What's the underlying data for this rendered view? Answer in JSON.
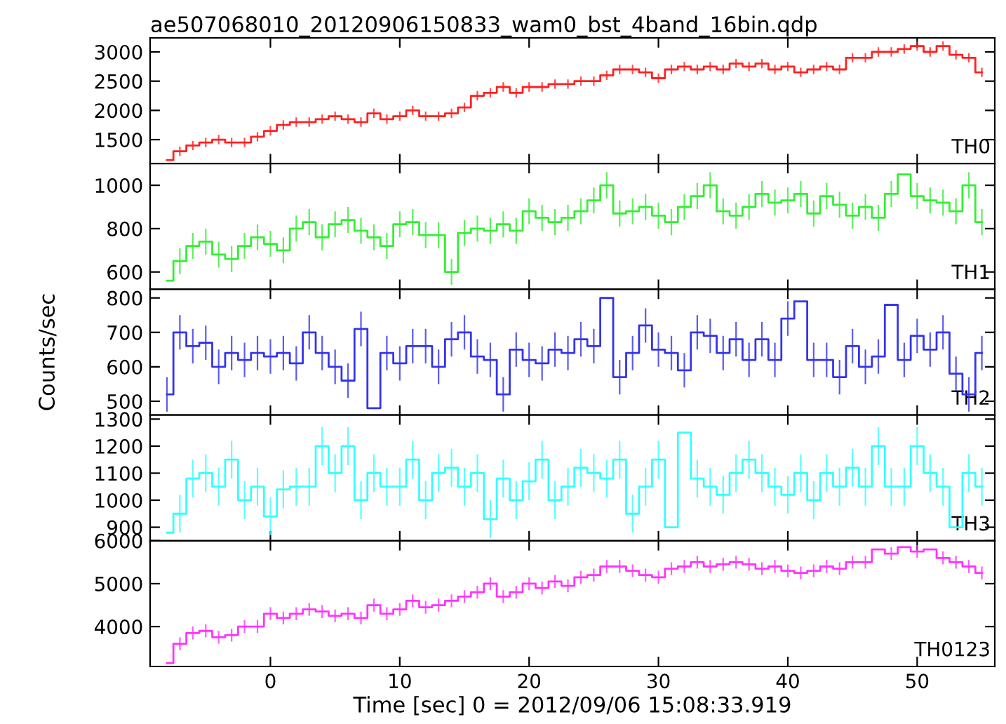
{
  "chart_data": [
    {
      "type": "step",
      "title": "ae507068010_20120906150833_wam0_bst_4band_16bin.qdp",
      "tick_labels": "y",
      "x": [
        -8,
        -7,
        -6,
        -5,
        -4,
        -3,
        -2,
        -1,
        0,
        1,
        2,
        3,
        4,
        5,
        6,
        7,
        8,
        9,
        10,
        11,
        12,
        13,
        14,
        15,
        16,
        17,
        18,
        19,
        20,
        21,
        22,
        23,
        24,
        25,
        26,
        27,
        28,
        29,
        30,
        31,
        32,
        33,
        34,
        35,
        36,
        37,
        38,
        39,
        40,
        41,
        42,
        43,
        44,
        45,
        46,
        47,
        48,
        49,
        50,
        51,
        52,
        53,
        54,
        55
      ],
      "xlim": [
        -9.3,
        56
      ],
      "xticks": [
        0,
        10,
        20,
        30,
        40,
        50
      ],
      "ylim": [
        1090,
        3240
      ],
      "yticks": [
        1500,
        2000,
        2500,
        3000
      ],
      "series": [
        {
          "name": "TH0",
          "color": "#ff2020",
          "errors": [
            null,
            80,
            80,
            80,
            80,
            80,
            80,
            80,
            80,
            80,
            80,
            80,
            80,
            80,
            80,
            80,
            80,
            80,
            80,
            80,
            80,
            80,
            80,
            80,
            80,
            80,
            80,
            80,
            80,
            80,
            80,
            80,
            80,
            80,
            80,
            80,
            80,
            80,
            80,
            80,
            80,
            80,
            80,
            80,
            80,
            80,
            80,
            80,
            80,
            80,
            80,
            80,
            80,
            80,
            80,
            80,
            80,
            80,
            80,
            80,
            80,
            80,
            80,
            80
          ],
          "values": [
            1150,
            1300,
            1400,
            1450,
            1500,
            1450,
            1450,
            1550,
            1650,
            1750,
            1800,
            1800,
            1850,
            1900,
            1850,
            1800,
            1950,
            1850,
            1900,
            2000,
            1900,
            1900,
            1950,
            2050,
            2250,
            2300,
            2400,
            2300,
            2400,
            2400,
            2450,
            2450,
            2500,
            2500,
            2600,
            2700,
            2700,
            2650,
            2550,
            2700,
            2750,
            2700,
            2750,
            2700,
            2800,
            2750,
            2800,
            2700,
            2750,
            2650,
            2700,
            2750,
            2700,
            2900,
            2900,
            3000,
            3000,
            3050,
            3100,
            3000,
            3100,
            2950,
            2900,
            2650
          ]
        }
      ]
    },
    {
      "type": "step",
      "tick_labels": "y",
      "x": [
        -8,
        -7,
        -6,
        -5,
        -4,
        -3,
        -2,
        -1,
        0,
        1,
        2,
        3,
        4,
        5,
        6,
        7,
        8,
        9,
        10,
        11,
        12,
        13,
        14,
        15,
        16,
        17,
        18,
        19,
        20,
        21,
        22,
        23,
        24,
        25,
        26,
        27,
        28,
        29,
        30,
        31,
        32,
        33,
        34,
        35,
        36,
        37,
        38,
        39,
        40,
        41,
        42,
        43,
        44,
        45,
        46,
        47,
        48,
        49,
        50,
        51,
        52,
        53,
        54,
        55
      ],
      "xlim": [
        -9.3,
        56
      ],
      "xticks": [
        0,
        10,
        20,
        30,
        40,
        50
      ],
      "ylim": [
        520,
        1100
      ],
      "yticks": [
        600,
        800,
        1000
      ],
      "series": [
        {
          "name": "TH1",
          "color": "#33ee33",
          "errors": [
            null,
            60,
            60,
            60,
            60,
            60,
            60,
            60,
            60,
            60,
            60,
            60,
            60,
            60,
            60,
            60,
            60,
            60,
            60,
            60,
            60,
            60,
            60,
            60,
            60,
            60,
            60,
            60,
            60,
            60,
            60,
            60,
            60,
            60,
            60,
            60,
            60,
            60,
            60,
            60,
            60,
            60,
            60,
            60,
            60,
            60,
            60,
            60,
            60,
            60,
            60,
            60,
            60,
            60,
            60,
            60,
            60,
            null,
            60,
            60,
            60,
            60,
            60,
            60
          ],
          "values": [
            560,
            650,
            720,
            740,
            680,
            660,
            720,
            760,
            730,
            700,
            800,
            830,
            760,
            820,
            840,
            790,
            760,
            720,
            820,
            830,
            770,
            770,
            600,
            780,
            800,
            790,
            820,
            790,
            880,
            850,
            830,
            850,
            880,
            930,
            1000,
            870,
            880,
            900,
            860,
            830,
            900,
            950,
            1000,
            880,
            860,
            900,
            960,
            920,
            930,
            960,
            870,
            950,
            910,
            860,
            900,
            850,
            960,
            1050,
            950,
            930,
            920,
            880,
            1000,
            830
          ]
        }
      ]
    },
    {
      "type": "step",
      "tick_labels": "y",
      "ylabel": "Counts/sec",
      "x": [
        -8,
        -7,
        -6,
        -5,
        -4,
        -3,
        -2,
        -1,
        0,
        1,
        2,
        3,
        4,
        5,
        6,
        7,
        8,
        9,
        10,
        11,
        12,
        13,
        14,
        15,
        16,
        17,
        18,
        19,
        20,
        21,
        22,
        23,
        24,
        25,
        26,
        27,
        28,
        29,
        30,
        31,
        32,
        33,
        34,
        35,
        36,
        37,
        38,
        39,
        40,
        41,
        42,
        43,
        44,
        45,
        46,
        47,
        48,
        49,
        50,
        51,
        52,
        53,
        54,
        55
      ],
      "xlim": [
        -9.3,
        56
      ],
      "xticks": [
        0,
        10,
        20,
        30,
        40,
        50
      ],
      "ylim": [
        460,
        825
      ],
      "yticks": [
        500,
        600,
        700,
        800
      ],
      "series": [
        {
          "name": "TH2",
          "color": "#3333ee",
          "errors": [
            50,
            50,
            50,
            50,
            50,
            50,
            50,
            50,
            50,
            50,
            50,
            50,
            50,
            50,
            50,
            50,
            null,
            50,
            50,
            50,
            50,
            50,
            50,
            50,
            50,
            50,
            50,
            50,
            50,
            50,
            50,
            50,
            50,
            50,
            null,
            50,
            50,
            50,
            50,
            50,
            50,
            50,
            50,
            50,
            50,
            50,
            50,
            50,
            50,
            null,
            50,
            50,
            50,
            50,
            50,
            50,
            null,
            50,
            50,
            50,
            50,
            50,
            50,
            50
          ],
          "values": [
            520,
            700,
            660,
            670,
            600,
            640,
            620,
            640,
            630,
            640,
            610,
            700,
            640,
            600,
            560,
            710,
            480,
            640,
            610,
            660,
            660,
            600,
            680,
            700,
            630,
            620,
            520,
            650,
            620,
            610,
            650,
            640,
            680,
            660,
            800,
            570,
            640,
            720,
            650,
            640,
            590,
            700,
            690,
            640,
            680,
            620,
            680,
            620,
            740,
            790,
            620,
            620,
            570,
            660,
            600,
            630,
            780,
            620,
            690,
            650,
            700,
            580,
            520,
            640
          ]
        }
      ]
    },
    {
      "type": "step",
      "tick_labels": "y",
      "x": [
        -8,
        -7,
        -6,
        -5,
        -4,
        -3,
        -2,
        -1,
        0,
        1,
        2,
        3,
        4,
        5,
        6,
        7,
        8,
        9,
        10,
        11,
        12,
        13,
        14,
        15,
        16,
        17,
        18,
        19,
        20,
        21,
        22,
        23,
        24,
        25,
        26,
        27,
        28,
        29,
        30,
        31,
        32,
        33,
        34,
        35,
        36,
        37,
        38,
        39,
        40,
        41,
        42,
        43,
        44,
        45,
        46,
        47,
        48,
        49,
        50,
        51,
        52,
        53,
        54,
        55
      ],
      "xlim": [
        -9.3,
        56
      ],
      "xticks": [
        0,
        10,
        20,
        30,
        40,
        50
      ],
      "ylim": [
        850,
        1315
      ],
      "yticks": [
        900,
        1000,
        1100,
        1200,
        1300
      ],
      "series": [
        {
          "name": "TH3",
          "color": "#33ffff",
          "errors": [
            null,
            70,
            70,
            70,
            70,
            70,
            70,
            70,
            70,
            70,
            70,
            70,
            70,
            70,
            70,
            70,
            70,
            70,
            70,
            70,
            70,
            70,
            70,
            70,
            70,
            70,
            70,
            70,
            70,
            70,
            70,
            70,
            70,
            70,
            70,
            70,
            70,
            70,
            70,
            null,
            null,
            70,
            70,
            70,
            70,
            70,
            70,
            70,
            70,
            70,
            70,
            70,
            70,
            70,
            70,
            70,
            70,
            70,
            70,
            70,
            70,
            null,
            70,
            70
          ],
          "values": [
            880,
            950,
            1080,
            1100,
            1050,
            1150,
            1000,
            1050,
            940,
            1040,
            1050,
            1050,
            1200,
            1100,
            1200,
            1000,
            1100,
            1050,
            1050,
            1150,
            1000,
            1100,
            1120,
            1050,
            1100,
            930,
            1080,
            1000,
            1070,
            1150,
            1000,
            1050,
            1120,
            1100,
            1080,
            1150,
            950,
            1050,
            1150,
            900,
            1250,
            1080,
            1050,
            1020,
            1100,
            1150,
            1100,
            1050,
            1020,
            1100,
            1000,
            1100,
            1050,
            1120,
            1050,
            1200,
            1050,
            1050,
            1200,
            1100,
            1050,
            900,
            1100,
            1050
          ]
        }
      ]
    },
    {
      "type": "step",
      "xlabel": "Time [sec] 0 = 2012/09/06 15:08:33.919",
      "x": [
        -8,
        -7,
        -6,
        -5,
        -4,
        -3,
        -2,
        -1,
        0,
        1,
        2,
        3,
        4,
        5,
        6,
        7,
        8,
        9,
        10,
        11,
        12,
        13,
        14,
        15,
        16,
        17,
        18,
        19,
        20,
        21,
        22,
        23,
        24,
        25,
        26,
        27,
        28,
        29,
        30,
        31,
        32,
        33,
        34,
        35,
        36,
        37,
        38,
        39,
        40,
        41,
        42,
        43,
        44,
        45,
        46,
        47,
        48,
        49,
        50,
        51,
        52,
        53,
        54,
        55
      ],
      "xlim": [
        -9.3,
        56
      ],
      "xticks": [
        0,
        10,
        20,
        30,
        40,
        50
      ],
      "ylim": [
        3070,
        6000
      ],
      "yticks": [
        4000,
        5000,
        6000
      ],
      "series": [
        {
          "name": "TH0123",
          "color": "#ff33ff",
          "errors": [
            null,
            150,
            150,
            150,
            150,
            150,
            150,
            150,
            150,
            150,
            150,
            150,
            150,
            150,
            150,
            150,
            150,
            150,
            150,
            150,
            150,
            150,
            150,
            150,
            150,
            150,
            150,
            150,
            150,
            150,
            150,
            150,
            150,
            150,
            150,
            150,
            150,
            150,
            150,
            150,
            150,
            150,
            150,
            150,
            150,
            150,
            150,
            150,
            150,
            150,
            150,
            150,
            150,
            150,
            150,
            null,
            150,
            null,
            150,
            null,
            150,
            150,
            150,
            150
          ],
          "values": [
            3150,
            3600,
            3850,
            3900,
            3750,
            3800,
            4000,
            4000,
            4300,
            4200,
            4300,
            4400,
            4350,
            4250,
            4300,
            4200,
            4500,
            4300,
            4400,
            4600,
            4450,
            4500,
            4600,
            4700,
            4800,
            5000,
            4700,
            4800,
            5000,
            4900,
            5050,
            4950,
            5150,
            5200,
            5400,
            5400,
            5300,
            5200,
            5150,
            5350,
            5400,
            5500,
            5400,
            5450,
            5500,
            5450,
            5350,
            5400,
            5300,
            5250,
            5300,
            5400,
            5350,
            5500,
            5500,
            5800,
            5700,
            5850,
            5750,
            5800,
            5600,
            5500,
            5400,
            5250
          ]
        }
      ]
    }
  ]
}
